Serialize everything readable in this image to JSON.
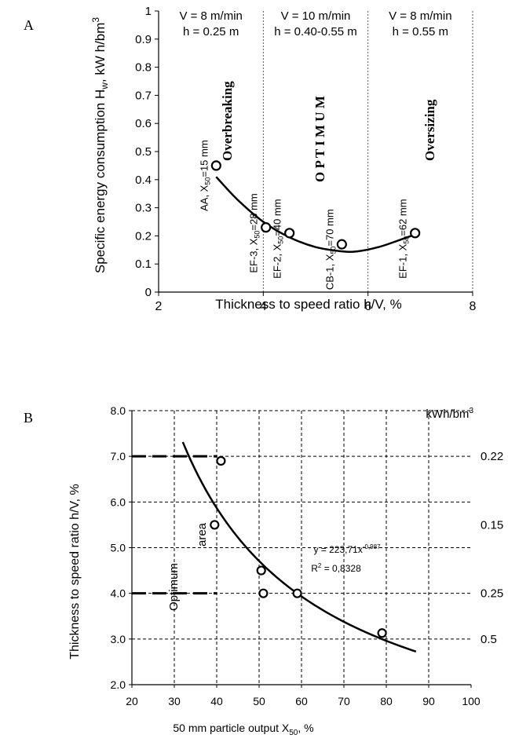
{
  "chart_data": [
    {
      "panel_label": "A",
      "type": "scatter",
      "xlabel": "Thickness to speed ratio h/V, %",
      "ylabel": "Specific energy consumption H",
      "ylabel_sub": "w",
      "ylabel_unit": ", kW h/bm",
      "ylabel_sup": "3",
      "xlim": [
        2,
        8
      ],
      "ylim": [
        0,
        1
      ],
      "x_ticks": [
        "2",
        "4",
        "6",
        "8"
      ],
      "y_ticks": [
        "0",
        "0.1",
        "0.2",
        "0.3",
        "0.4",
        "0.5",
        "0.6",
        "0.7",
        "0.8",
        "0.9",
        "1"
      ],
      "zone_dividers": [
        4,
        6
      ],
      "zones": [
        {
          "line1": "V = 8 m/min",
          "line2": "h  = 0.25  m"
        },
        {
          "line1": "V = 10 m/min",
          "line2": "h = 0.40-0.55 m"
        },
        {
          "line1": "V = 8 m/min",
          "line2": "h = 0.55 m"
        }
      ],
      "points": [
        {
          "x": 3.1,
          "y": 0.45,
          "label": "AA, X",
          "sub": "50",
          "rest": "=15 mm"
        },
        {
          "x": 4.05,
          "y": 0.23,
          "label": "EF-3, X",
          "sub": "50",
          "rest": "=28 mm"
        },
        {
          "x": 4.5,
          "y": 0.21,
          "label": "EF-2, X",
          "sub": "50",
          "rest": "=40 mm"
        },
        {
          "x": 5.5,
          "y": 0.17,
          "label": "CB-1, X",
          "sub": "50",
          "rest": "=70 mm"
        },
        {
          "x": 6.9,
          "y": 0.21,
          "label": "EF-1, X",
          "sub": "50",
          "rest": "=62 mm"
        }
      ],
      "curve": {
        "x": [
          3.1,
          3.5,
          4.0,
          4.5,
          5.0,
          5.5,
          5.8,
          6.2,
          6.6,
          6.9
        ],
        "y": [
          0.41,
          0.33,
          0.25,
          0.195,
          0.16,
          0.145,
          0.145,
          0.16,
          0.185,
          0.205
        ]
      },
      "annotations": {
        "overbreaking": "Overbreaking",
        "optimum": "O P T I M U M",
        "oversizing": "Oversizing"
      }
    },
    {
      "panel_label": "B",
      "type": "scatter",
      "xlabel": "50 mm particle output X",
      "xlabel_sub": "50",
      "xlabel_unit": ", %",
      "ylabel": "Thickness to speed ratio h/V, %",
      "xlim": [
        20,
        100
      ],
      "ylim": [
        2,
        8
      ],
      "x_ticks": [
        "20",
        "30",
        "40",
        "50",
        "60",
        "70",
        "80",
        "90",
        "100"
      ],
      "y_ticks": [
        "2.0",
        "3.0",
        "4.0",
        "5.0",
        "6.0",
        "7.0",
        "8.0"
      ],
      "right_axis_title": "kWh/bm",
      "right_axis_sup": "3",
      "right_labels": [
        {
          "y": 7,
          "text": "0.22"
        },
        {
          "y": 5.5,
          "text": "0.15"
        },
        {
          "y": 4,
          "text": "0.25"
        },
        {
          "y": 3,
          "text": "0.5"
        }
      ],
      "points": [
        {
          "x": 41,
          "y": 6.9
        },
        {
          "x": 39.5,
          "y": 5.5
        },
        {
          "x": 50.5,
          "y": 4.5
        },
        {
          "x": 51,
          "y": 4.0
        },
        {
          "x": 59,
          "y": 4.0
        },
        {
          "x": 79,
          "y": 3.13
        }
      ],
      "fit": {
        "a": 223.71,
        "b": -0.987,
        "x_from": 32,
        "x_to": 87
      },
      "equation": "y = 223,71x",
      "equation_exp": "-0,987",
      "r2_prefix": "R",
      "r2_sup": "2",
      "r2_value": " = 0,8328",
      "area_line1": "Optimum",
      "area_line2": "area",
      "dashed_levels": [
        7,
        4
      ],
      "dashed_to_x": 40
    }
  ]
}
